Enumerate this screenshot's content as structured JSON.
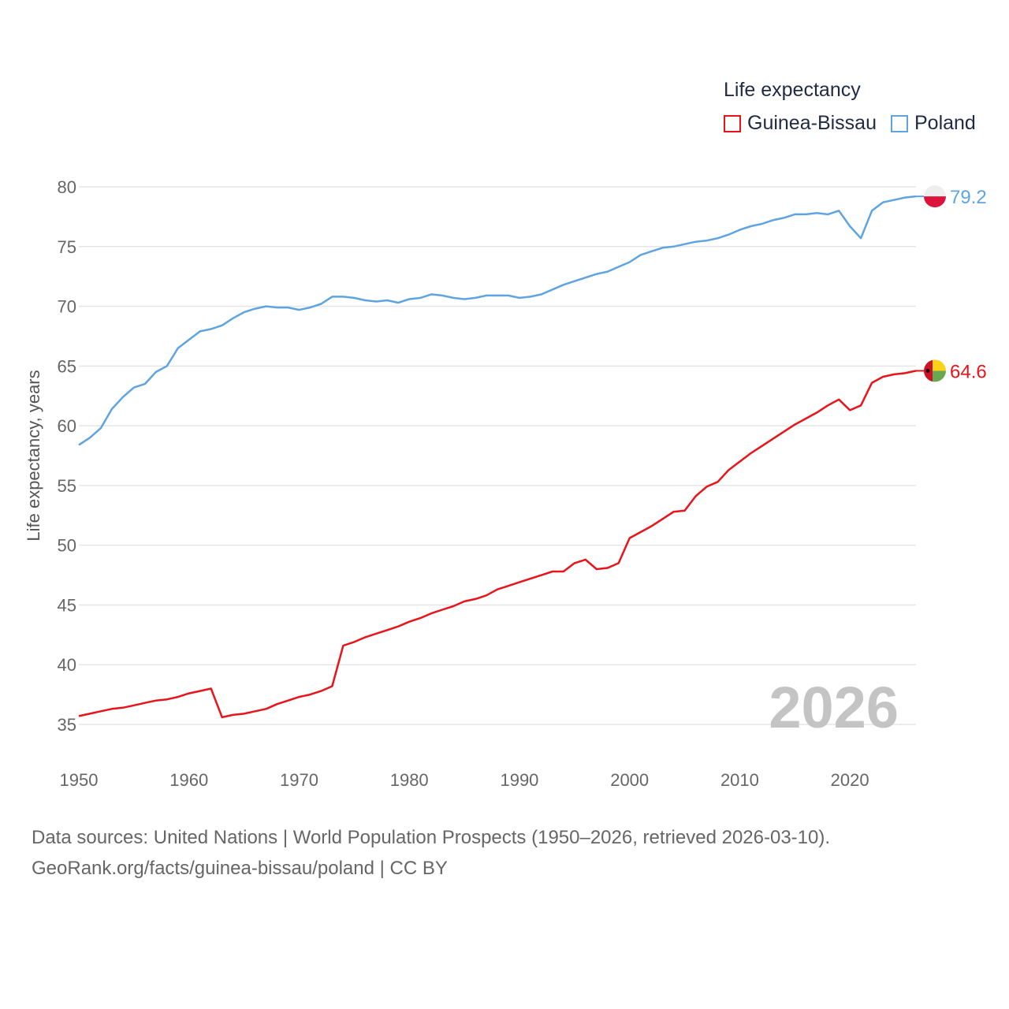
{
  "legend": {
    "title": "Life expectancy",
    "items": [
      {
        "name": "Guinea-Bissau",
        "color": "#e8141a"
      },
      {
        "name": "Poland",
        "color": "#5fa4e2"
      }
    ]
  },
  "watermark_year": "2026",
  "footer": {
    "line1": "Data sources: United Nations | World Population Prospects (1950–2026, retrieved 2026-03-10).",
    "line2": "GeoRank.org/facts/guinea-bissau/poland | CC BY"
  },
  "chart_data": {
    "type": "line",
    "title": "Life expectancy",
    "xlabel": "",
    "ylabel": "Life expectancy, years",
    "xlim": [
      1950,
      2026
    ],
    "ylim": [
      33,
      81
    ],
    "x_ticks": [
      1950,
      1960,
      1970,
      1980,
      1990,
      2000,
      2010,
      2020
    ],
    "y_ticks": [
      35,
      40,
      45,
      50,
      55,
      60,
      65,
      70,
      75,
      80
    ],
    "series": [
      {
        "name": "Poland",
        "color": "#5fa4e2",
        "end_label": "79.2",
        "points": [
          [
            1950,
            58.4
          ],
          [
            1951,
            59.0
          ],
          [
            1952,
            59.8
          ],
          [
            1953,
            61.4
          ],
          [
            1954,
            62.4
          ],
          [
            1955,
            63.2
          ],
          [
            1956,
            63.5
          ],
          [
            1957,
            64.5
          ],
          [
            1958,
            65.0
          ],
          [
            1959,
            66.5
          ],
          [
            1960,
            67.2
          ],
          [
            1961,
            67.9
          ],
          [
            1962,
            68.1
          ],
          [
            1963,
            68.4
          ],
          [
            1964,
            69.0
          ],
          [
            1965,
            69.5
          ],
          [
            1966,
            69.8
          ],
          [
            1967,
            70.0
          ],
          [
            1968,
            69.9
          ],
          [
            1969,
            69.9
          ],
          [
            1970,
            69.7
          ],
          [
            1971,
            69.9
          ],
          [
            1972,
            70.2
          ],
          [
            1973,
            70.8
          ],
          [
            1974,
            70.8
          ],
          [
            1975,
            70.7
          ],
          [
            1976,
            70.5
          ],
          [
            1977,
            70.4
          ],
          [
            1978,
            70.5
          ],
          [
            1979,
            70.3
          ],
          [
            1980,
            70.6
          ],
          [
            1981,
            70.7
          ],
          [
            1982,
            71.0
          ],
          [
            1983,
            70.9
          ],
          [
            1984,
            70.7
          ],
          [
            1985,
            70.6
          ],
          [
            1986,
            70.7
          ],
          [
            1987,
            70.9
          ],
          [
            1988,
            70.9
          ],
          [
            1989,
            70.9
          ],
          [
            1990,
            70.7
          ],
          [
            1991,
            70.8
          ],
          [
            1992,
            71.0
          ],
          [
            1993,
            71.4
          ],
          [
            1994,
            71.8
          ],
          [
            1995,
            72.1
          ],
          [
            1996,
            72.4
          ],
          [
            1997,
            72.7
          ],
          [
            1998,
            72.9
          ],
          [
            1999,
            73.3
          ],
          [
            2000,
            73.7
          ],
          [
            2001,
            74.3
          ],
          [
            2002,
            74.6
          ],
          [
            2003,
            74.9
          ],
          [
            2004,
            75.0
          ],
          [
            2005,
            75.2
          ],
          [
            2006,
            75.4
          ],
          [
            2007,
            75.5
          ],
          [
            2008,
            75.7
          ],
          [
            2009,
            76.0
          ],
          [
            2010,
            76.4
          ],
          [
            2011,
            76.7
          ],
          [
            2012,
            76.9
          ],
          [
            2013,
            77.2
          ],
          [
            2014,
            77.4
          ],
          [
            2015,
            77.7
          ],
          [
            2016,
            77.7
          ],
          [
            2017,
            77.8
          ],
          [
            2018,
            77.7
          ],
          [
            2019,
            78.0
          ],
          [
            2020,
            76.7
          ],
          [
            2021,
            75.7
          ],
          [
            2022,
            78.0
          ],
          [
            2023,
            78.7
          ],
          [
            2024,
            78.9
          ],
          [
            2025,
            79.1
          ],
          [
            2026,
            79.2
          ]
        ]
      },
      {
        "name": "Guinea-Bissau",
        "color": "#e8141a",
        "end_label": "64.6",
        "points": [
          [
            1950,
            35.7
          ],
          [
            1951,
            35.9
          ],
          [
            1952,
            36.1
          ],
          [
            1953,
            36.3
          ],
          [
            1954,
            36.4
          ],
          [
            1955,
            36.6
          ],
          [
            1956,
            36.8
          ],
          [
            1957,
            37.0
          ],
          [
            1958,
            37.1
          ],
          [
            1959,
            37.3
          ],
          [
            1960,
            37.6
          ],
          [
            1961,
            37.8
          ],
          [
            1962,
            38.0
          ],
          [
            1963,
            35.6
          ],
          [
            1964,
            35.8
          ],
          [
            1965,
            35.9
          ],
          [
            1966,
            36.1
          ],
          [
            1967,
            36.3
          ],
          [
            1968,
            36.7
          ],
          [
            1969,
            37.0
          ],
          [
            1970,
            37.3
          ],
          [
            1971,
            37.5
          ],
          [
            1972,
            37.8
          ],
          [
            1973,
            38.2
          ],
          [
            1974,
            41.6
          ],
          [
            1975,
            41.9
          ],
          [
            1976,
            42.3
          ],
          [
            1977,
            42.6
          ],
          [
            1978,
            42.9
          ],
          [
            1979,
            43.2
          ],
          [
            1980,
            43.6
          ],
          [
            1981,
            43.9
          ],
          [
            1982,
            44.3
          ],
          [
            1983,
            44.6
          ],
          [
            1984,
            44.9
          ],
          [
            1985,
            45.3
          ],
          [
            1986,
            45.5
          ],
          [
            1987,
            45.8
          ],
          [
            1988,
            46.3
          ],
          [
            1989,
            46.6
          ],
          [
            1990,
            46.9
          ],
          [
            1991,
            47.2
          ],
          [
            1992,
            47.5
          ],
          [
            1993,
            47.8
          ],
          [
            1994,
            47.8
          ],
          [
            1995,
            48.5
          ],
          [
            1996,
            48.8
          ],
          [
            1997,
            48.0
          ],
          [
            1998,
            48.1
          ],
          [
            1999,
            48.5
          ],
          [
            2000,
            50.6
          ],
          [
            2001,
            51.1
          ],
          [
            2002,
            51.6
          ],
          [
            2003,
            52.2
          ],
          [
            2004,
            52.8
          ],
          [
            2005,
            52.9
          ],
          [
            2006,
            54.1
          ],
          [
            2007,
            54.9
          ],
          [
            2008,
            55.3
          ],
          [
            2009,
            56.3
          ],
          [
            2010,
            57.0
          ],
          [
            2011,
            57.7
          ],
          [
            2012,
            58.3
          ],
          [
            2013,
            58.9
          ],
          [
            2014,
            59.5
          ],
          [
            2015,
            60.1
          ],
          [
            2016,
            60.6
          ],
          [
            2017,
            61.1
          ],
          [
            2018,
            61.7
          ],
          [
            2019,
            62.2
          ],
          [
            2020,
            61.3
          ],
          [
            2021,
            61.7
          ],
          [
            2022,
            63.6
          ],
          [
            2023,
            64.1
          ],
          [
            2024,
            64.3
          ],
          [
            2025,
            64.4
          ],
          [
            2026,
            64.6
          ]
        ]
      }
    ]
  }
}
